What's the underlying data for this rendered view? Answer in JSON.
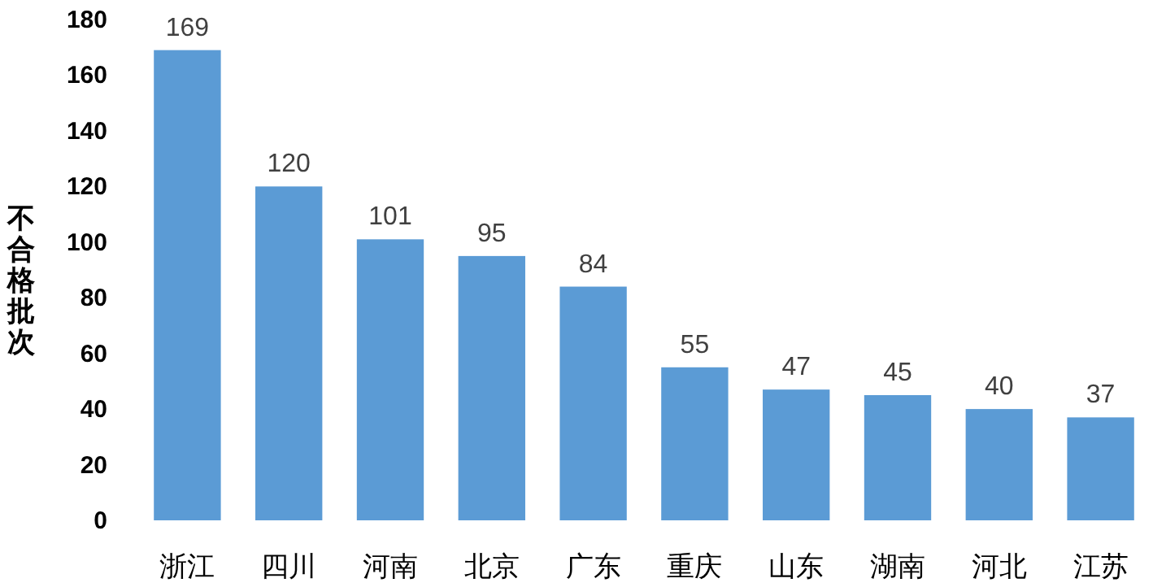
{
  "chart_data": {
    "type": "bar",
    "ylabel": "不合格批次",
    "categories": [
      "浙江",
      "四川",
      "河南",
      "北京",
      "广东",
      "重庆",
      "山东",
      "湖南",
      "河北",
      "江苏"
    ],
    "values": [
      169,
      120,
      101,
      95,
      84,
      55,
      47,
      45,
      40,
      37
    ],
    "color": "#5b9bd5",
    "ylim": [
      0,
      180
    ],
    "yticks": [
      0,
      20,
      40,
      60,
      80,
      100,
      120,
      140,
      160,
      180
    ],
    "data_labels": true
  }
}
